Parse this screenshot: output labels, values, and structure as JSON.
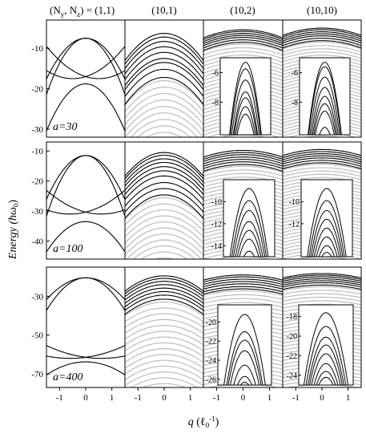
{
  "chart_data": {
    "type": "line",
    "column_headers": [
      "(N_y, N_z) = (1,1)",
      "(10,1)",
      "(10,2)",
      "(10,10)"
    ],
    "xlabel": "q (ℓ0^-1)",
    "ylabel": "Energy (ħω0)",
    "xlim": [
      -1.5,
      1.5
    ],
    "xticks": [
      "-1",
      "0",
      "1"
    ],
    "line_colors": {
      "bold": "#000000",
      "faint": "#bdbdbd"
    },
    "rows": [
      {
        "label": "a=30",
        "ylim": [
          -32,
          -3
        ],
        "yticks": [
          "-10",
          "-20",
          "-30"
        ],
        "panels": [
          {
            "bands": [
              {
                "peak": -7.5,
                "curv": 4.5
              },
              {
                "peak": -7.5,
                "curv": 6.2
              },
              {
                "peak": -17.5,
                "curv": -2.0,
                "shift": 0.5
              },
              {
                "peak": -17.5,
                "curv": -2.0,
                "shift": -0.5
              },
              {
                "peak": -18.8,
                "curv": 5.2
              }
            ]
          },
          {
            "bold": [
              -6.3,
              -7.2,
              -8.3,
              -9.6,
              -11.0,
              -12.5,
              -13.5,
              -15.2,
              -17.2
            ],
            "curv": 3.0,
            "faint_spacing": 1.6
          },
          {
            "bold": [
              -5.4,
              -5.8,
              -6.3,
              -6.8,
              -7.3,
              -7.9,
              -8.5
            ],
            "curv": 0.9,
            "faint_spacing": 0.9,
            "inset": {
              "ylim": [
                -10.2,
                -5.0
              ],
              "yticks": [
                "-6",
                "-8"
              ],
              "peaks": [
                -5.3,
                -5.75,
                -6.5,
                -7.3,
                -7.7,
                -8.3,
                -8.8
              ],
              "curv": 5.5
            }
          },
          {
            "bold": [
              -5.0,
              -5.4,
              -5.9,
              -6.4,
              -6.9,
              -7.5,
              -8.1
            ],
            "curv": 0.8,
            "faint_spacing": 0.8,
            "inset": {
              "ylim": [
                -10.2,
                -5.0
              ],
              "yticks": [
                "-6",
                "-8"
              ],
              "peaks": [
                -5.3,
                -5.6,
                -6.3,
                -7.0,
                -7.6,
                -8.1,
                -8.6,
                -9.7
              ],
              "curv": 5.0
            }
          }
        ]
      },
      {
        "label": "a=100",
        "ylim": [
          -46,
          -7
        ],
        "yticks": [
          "-10",
          "-20",
          "-30",
          "-40"
        ],
        "panels": [
          {
            "bands": [
              {
                "peak": -11.5,
                "curv": 6.5
              },
              {
                "peak": -11.5,
                "curv": 9.0
              },
              {
                "peak": -31.0,
                "curv": -1.8,
                "shift": 0.6
              },
              {
                "peak": -31.0,
                "curv": -1.8,
                "shift": -0.6
              },
              {
                "peak": -33.5,
                "curv": 4.5
              }
            ]
          },
          {
            "bold": [
              -10.5,
              -11.4,
              -12.6,
              -13.8,
              -15.2,
              -16.6,
              -18.3,
              -20.5,
              -22.5,
              -24.6
            ],
            "curv": 3.5,
            "faint_spacing": 2.0
          },
          {
            "bold": [
              -9.8,
              -10.5,
              -11.2,
              -12.0,
              -12.8,
              -13.6,
              -14.5
            ],
            "curv": 1.0,
            "faint_spacing": 1.2,
            "inset": {
              "ylim": [
                -15.0,
                -8.0
              ],
              "yticks": [
                "-10",
                "-12",
                "-14"
              ],
              "peaks": [
                -8.8,
                -9.9,
                -10.8,
                -11.8,
                -12.6,
                -13.4,
                -14.5
              ],
              "curv": 5.0
            }
          },
          {
            "bold": [
              -9.5,
              -10.2,
              -10.9,
              -11.6,
              -12.3,
              -13.1,
              -13.9
            ],
            "curv": 0.9,
            "faint_spacing": 1.1,
            "inset": {
              "ylim": [
                -15.0,
                -8.0
              ],
              "yticks": [
                "-10",
                "-12"
              ],
              "peaks": [
                -8.8,
                -9.9,
                -10.8,
                -11.6,
                -12.4,
                -13.2,
                -14.0,
                -14.6
              ],
              "curv": 4.8
            }
          }
        ]
      },
      {
        "label": "a=400",
        "ylim": [
          -77,
          -15
        ],
        "yticks": [
          "-30",
          "-50",
          "-70"
        ],
        "panels": [
          {
            "bands": [
              {
                "peak": -20.5,
                "curv": 5.0
              },
              {
                "peak": -20.5,
                "curv": 7.5
              },
              {
                "peak": -62.0,
                "curv": -1.5,
                "shift": 0.6
              },
              {
                "peak": -62.0,
                "curv": -1.5,
                "shift": -0.6
              },
              {
                "peak": -63.8,
                "curv": 3.0
              }
            ]
          },
          {
            "bold": [
              -19.5,
              -20.8,
              -22.3,
              -24.0,
              -25.8,
              -27.6,
              -29.4,
              -31.5
            ],
            "curv": 3.5,
            "faint_spacing": 3.0
          },
          {
            "bold": [
              -19.0,
              -20.0,
              -21.2,
              -22.4,
              -23.6,
              -25.0,
              -26.2
            ],
            "curv": 1.2,
            "faint_spacing": 2.0,
            "inset": {
              "ylim": [
                -26.6,
                -18.2
              ],
              "yticks": [
                "-20",
                "-22",
                "-24",
                "-26"
              ],
              "peaks": [
                -19.2,
                -21.0,
                -21.9,
                -23.0,
                -24.5,
                -25.7,
                -26.3
              ],
              "curv": 5.5
            }
          },
          {
            "bold": [
              -18.3,
              -19.1,
              -20.0,
              -21.0,
              -22.0,
              -23.0,
              -24.2
            ],
            "curv": 1.0,
            "faint_spacing": 1.8,
            "inset": {
              "ylim": [
                -25.0,
                -16.8
              ],
              "yticks": [
                "-18",
                "-20",
                "-22",
                "-24"
              ],
              "peaks": [
                -17.6,
                -19.0,
                -20.1,
                -20.9,
                -21.8,
                -22.8,
                -23.6,
                -24.2
              ],
              "curv": 5.0
            }
          }
        ]
      }
    ]
  }
}
